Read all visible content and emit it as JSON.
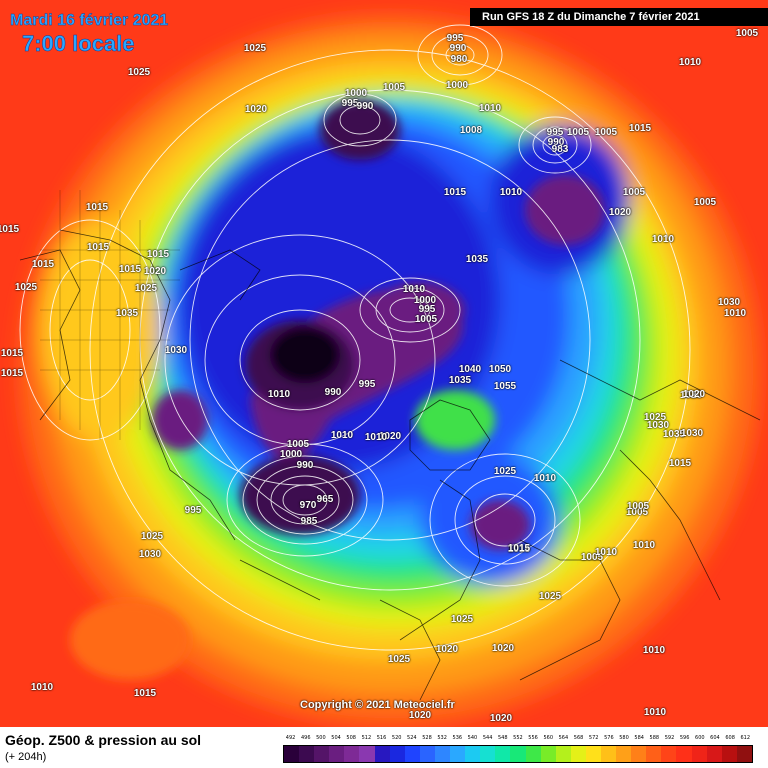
{
  "header": {
    "date": "Mardi 16 février 2021",
    "time": "7:00 locale",
    "run": "Run GFS 18 Z du Dimanche 7 février 2021"
  },
  "copyright": "Copyright © 2021 Meteociel.fr",
  "footer": {
    "title": "Géop. Z500 & pression au sol",
    "subtitle": "(+ 204h)"
  },
  "pressure_labels": [
    "1025",
    "1025",
    "1020",
    "1005",
    "995",
    "990",
    "980",
    "1000",
    "1005",
    "1010",
    "1005",
    "1000",
    "995",
    "990",
    "1008",
    "1010",
    "995",
    "990",
    "983",
    "1005",
    "1015",
    "1015",
    "1015",
    "1015",
    "1015",
    "1020",
    "1025",
    "1035",
    "1015",
    "1015",
    "1025",
    "1015",
    "1015",
    "1030",
    "1035",
    "1010",
    "1000",
    "995",
    "1005",
    "995",
    "990",
    "1010",
    "1010",
    "1020",
    "1010",
    "1005",
    "1000",
    "990",
    "965",
    "970",
    "985",
    "995",
    "1025",
    "1030",
    "1010",
    "1025",
    "1015",
    "1010",
    "1010",
    "1025",
    "1015",
    "1020",
    "1025",
    "1020",
    "1010",
    "1025",
    "1020",
    "1020",
    "1010",
    "1005",
    "1015",
    "1010",
    "1010",
    "1005",
    "1015",
    "1020",
    "1025",
    "1030",
    "1035",
    "1030",
    "1030",
    "1020",
    "1010",
    "1010",
    "1005",
    "1005",
    "1020",
    "1035",
    "1040",
    "1050",
    "1055",
    "1015",
    "1005"
  ],
  "scale": {
    "labels": [
      "492",
      "496",
      "500",
      "504",
      "508",
      "512",
      "516",
      "520",
      "524",
      "528",
      "532",
      "536",
      "540",
      "544",
      "548",
      "552",
      "556",
      "560",
      "564",
      "568",
      "572",
      "576",
      "580",
      "584",
      "588",
      "592",
      "596",
      "600",
      "604",
      "608",
      "612"
    ],
    "colors": [
      "#2a003a",
      "#3c0a50",
      "#541468",
      "#6a1e80",
      "#7e2a96",
      "#8a38b0",
      "#2818c0",
      "#1a28e0",
      "#1f44ff",
      "#2a64ff",
      "#2e86ff",
      "#2aa8ff",
      "#1ccaf2",
      "#16e0d2",
      "#10e8a8",
      "#18e878",
      "#3ee848",
      "#78ec28",
      "#b4f01c",
      "#e4f018",
      "#ffe01a",
      "#ffc018",
      "#ffa018",
      "#ff8018",
      "#ff6018",
      "#ff4418",
      "#ff3018",
      "#f02418",
      "#d81818",
      "#b81010",
      "#901010"
    ]
  }
}
